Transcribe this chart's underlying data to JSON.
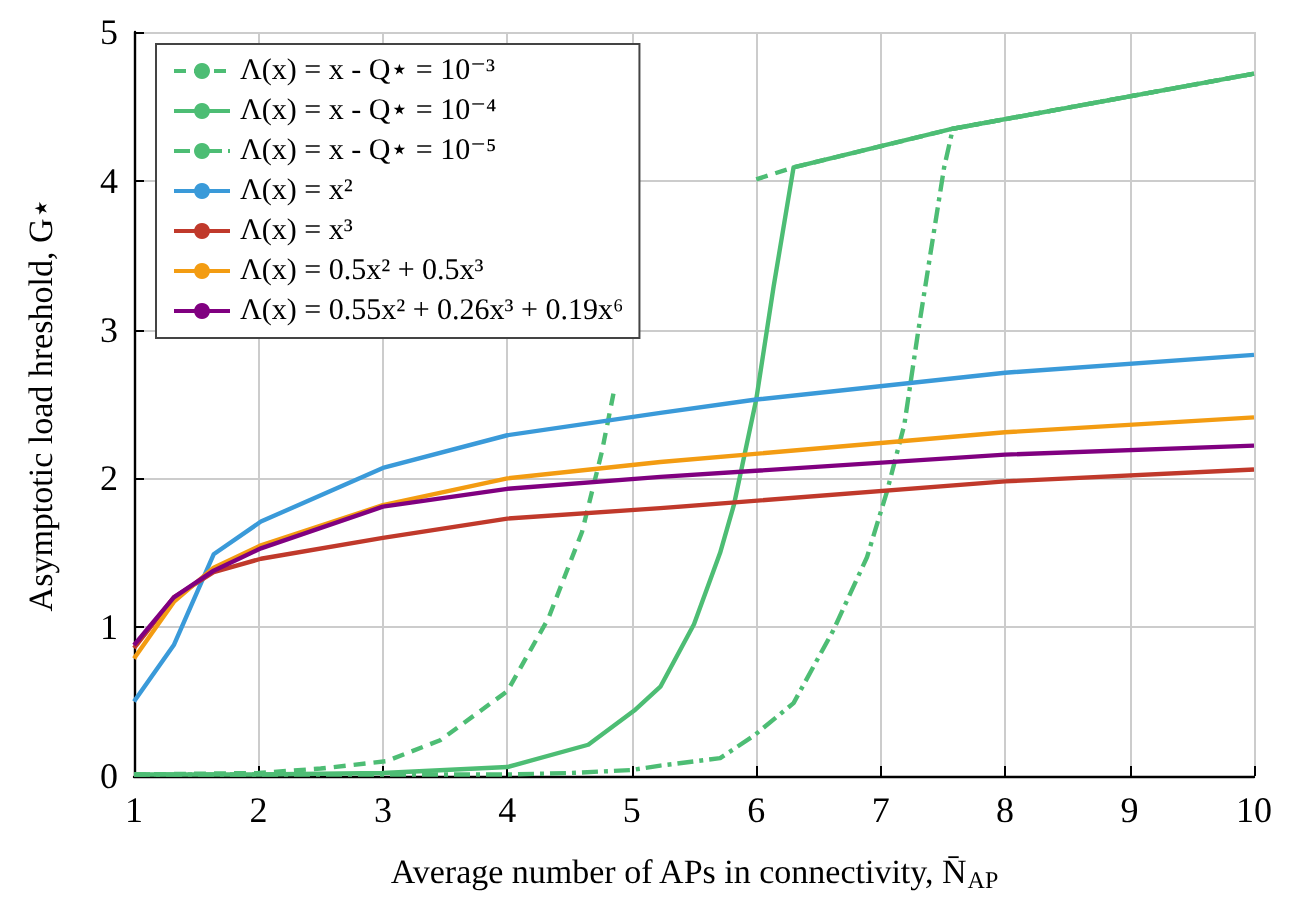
{
  "chart_data": {
    "type": "line",
    "xlabel": "Average number of APs in connectivity, N̄$_{AP}$",
    "ylabel": "Asymptotic load hreshold, G⋆",
    "xlim": [
      1,
      10
    ],
    "xticks": [
      1,
      2,
      3,
      4,
      5,
      6,
      7,
      8,
      9,
      10
    ],
    "ylim": [
      0,
      5
    ],
    "yticks": [
      0,
      1,
      2,
      3,
      4,
      5
    ],
    "grid": true,
    "legend": "top left",
    "marker": "none",
    "series": [
      {
        "name": "Λ(x) = x - Q⋆ = 10⁻³",
        "color": "#4dbd74",
        "line_style": "dashed",
        "x": [
          1,
          2,
          2.5,
          3.03,
          3.46,
          4.0,
          4.33,
          4.6,
          4.76,
          4.86,
          5.5,
          6.0,
          6.3,
          7.58,
          10
        ],
        "values": [
          0.01,
          0.02,
          0.05,
          0.1,
          0.24,
          0.57,
          1.06,
          1.64,
          2.18,
          2.6,
          null,
          4.01,
          4.09,
          4.35,
          4.72
        ]
      },
      {
        "name": "Λ(x) = x - Q⋆ = 10⁻⁴",
        "color": "#4dbd74",
        "line_style": "solid",
        "x": [
          1,
          2,
          3,
          4,
          4.65,
          5.02,
          5.23,
          5.5,
          5.71,
          5.82,
          6.0,
          6.14,
          6.3,
          7.58,
          10
        ],
        "values": [
          0.01,
          0.01,
          0.02,
          0.06,
          0.21,
          0.44,
          0.6,
          1.02,
          1.5,
          1.82,
          2.53,
          3.29,
          4.09,
          4.35,
          4.72
        ]
      },
      {
        "name": "Λ(x) = x - Q⋆ = 10⁻⁵",
        "color": "#4dbd74",
        "line_style": "dashdot",
        "x": [
          1,
          3,
          4,
          4.5,
          5,
          5.23,
          5.71,
          5.98,
          6.3,
          6.62,
          6.89,
          7.05,
          7.19,
          7.3,
          7.4,
          7.51,
          7.58,
          10
        ],
        "values": [
          0.01,
          0.01,
          0.01,
          0.02,
          0.04,
          0.07,
          0.12,
          0.27,
          0.49,
          0.98,
          1.47,
          1.91,
          2.36,
          2.98,
          3.51,
          4.09,
          4.35,
          4.72
        ]
      },
      {
        "name": "Λ(x) = x²",
        "color": "#3a9ad9",
        "line_style": "solid",
        "x": [
          1,
          1.32,
          1.64,
          2.02,
          3,
          4,
          5.23,
          6,
          8,
          10
        ],
        "values": [
          0.5,
          0.88,
          1.49,
          1.71,
          2.07,
          2.29,
          2.44,
          2.53,
          2.71,
          2.83
        ]
      },
      {
        "name": "Λ(x) = x³",
        "color": "#c0392b",
        "line_style": "solid",
        "x": [
          1,
          1.32,
          1.64,
          2.02,
          3,
          4,
          5.23,
          8,
          10
        ],
        "values": [
          0.86,
          1.2,
          1.37,
          1.46,
          1.6,
          1.73,
          1.8,
          1.98,
          2.06
        ]
      },
      {
        "name": "Λ(x) = 0.5x² + 0.5x³",
        "color": "#f39c12",
        "line_style": "solid",
        "x": [
          1,
          1.32,
          1.64,
          2.02,
          3,
          4,
          5.23,
          8,
          10
        ],
        "values": [
          0.79,
          1.17,
          1.4,
          1.55,
          1.82,
          2.0,
          2.11,
          2.31,
          2.41
        ]
      },
      {
        "name": "Λ(x) = 0.55x² + 0.26x³ + 0.19x⁶",
        "color": "#800080",
        "line_style": "solid",
        "x": [
          1,
          1.32,
          1.64,
          2.02,
          3,
          4,
          5.23,
          8,
          10
        ],
        "values": [
          0.88,
          1.2,
          1.38,
          1.53,
          1.81,
          1.93,
          2.01,
          2.16,
          2.22
        ]
      }
    ]
  }
}
